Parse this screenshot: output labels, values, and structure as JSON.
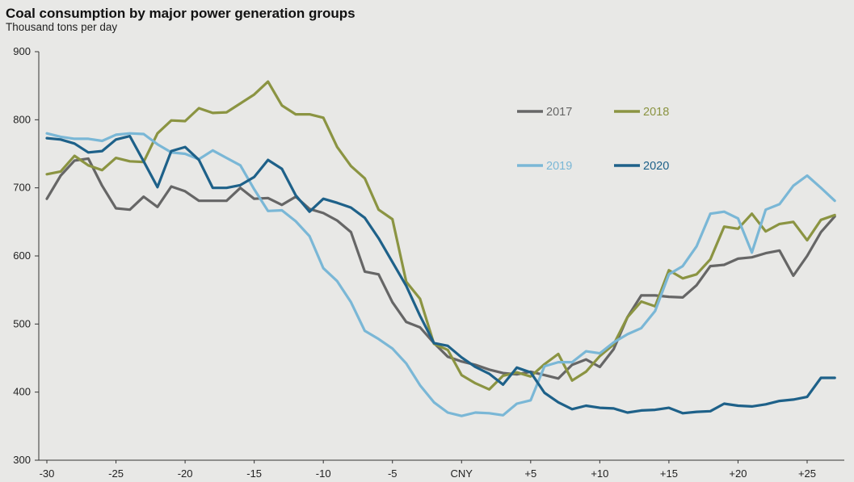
{
  "chart_data": {
    "type": "line",
    "title": "Coal consumption by major power generation groups",
    "subtitle": "Thousand tons per day",
    "ylim": [
      300,
      900
    ],
    "yticks": [
      300,
      400,
      500,
      600,
      700,
      800,
      900
    ],
    "xlim": [
      -30,
      28
    ],
    "xticks": [
      {
        "x": -30,
        "label": "-30"
      },
      {
        "x": -25,
        "label": "-25"
      },
      {
        "x": -20,
        "label": "-20"
      },
      {
        "x": -15,
        "label": "-15"
      },
      {
        "x": -10,
        "label": "-10"
      },
      {
        "x": -5,
        "label": "-5"
      },
      {
        "x": 0,
        "label": "CNY"
      },
      {
        "x": 5,
        "label": "+5"
      },
      {
        "x": 10,
        "label": "+10"
      },
      {
        "x": 15,
        "label": "+15"
      },
      {
        "x": 20,
        "label": "+20"
      },
      {
        "x": 25,
        "label": "+25"
      }
    ],
    "x_start": -30,
    "series": [
      {
        "name": "2017",
        "color": "#666666",
        "values": [
          684,
          718,
          740,
          743,
          703,
          670,
          668,
          687,
          672,
          702,
          695,
          681,
          681,
          681,
          700,
          684,
          685,
          675,
          687,
          669,
          663,
          652,
          635,
          577,
          573,
          532,
          503,
          495,
          472,
          452,
          445,
          440,
          433,
          428,
          426,
          430,
          425,
          420,
          440,
          448,
          437,
          463,
          510,
          542,
          542,
          540,
          539,
          557,
          585,
          587,
          596,
          598,
          604,
          608,
          571,
          600,
          635,
          658
        ]
      },
      {
        "name": "2018",
        "color": "#8b9442",
        "values": [
          720,
          724,
          747,
          733,
          726,
          744,
          739,
          738,
          780,
          799,
          798,
          817,
          810,
          811,
          824,
          837,
          856,
          821,
          808,
          808,
          803,
          760,
          732,
          714,
          668,
          654,
          562,
          537,
          471,
          462,
          425,
          413,
          404,
          424,
          429,
          423,
          441,
          456,
          417,
          430,
          453,
          470,
          510,
          533,
          526,
          579,
          567,
          573,
          595,
          643,
          640,
          662,
          636,
          647,
          650,
          623,
          653,
          660
        ]
      },
      {
        "name": "2019",
        "color": "#7ab7d6",
        "values": [
          780,
          775,
          772,
          772,
          769,
          778,
          780,
          779,
          764,
          752,
          750,
          742,
          755,
          744,
          733,
          698,
          666,
          667,
          651,
          629,
          582,
          563,
          532,
          490,
          478,
          464,
          442,
          410,
          385,
          370,
          365,
          370,
          369,
          366,
          383,
          388,
          438,
          444,
          444,
          460,
          457,
          473,
          485,
          494,
          519,
          573,
          585,
          614,
          662,
          665,
          655,
          605,
          668,
          676,
          703,
          718,
          700,
          681
        ]
      },
      {
        "name": "2020",
        "color": "#1e6189",
        "values": [
          773,
          771,
          765,
          752,
          754,
          771,
          776,
          739,
          701,
          754,
          760,
          741,
          700,
          700,
          704,
          716,
          741,
          728,
          689,
          665,
          684,
          678,
          671,
          656,
          626,
          591,
          556,
          512,
          472,
          468,
          451,
          437,
          427,
          411,
          436,
          429,
          399,
          385,
          375,
          380,
          377,
          376,
          370,
          373,
          374,
          377,
          369,
          371,
          372,
          383,
          380,
          379,
          382,
          387,
          389,
          393,
          421,
          421
        ]
      }
    ],
    "legend": {
      "entries": [
        "2017",
        "2018",
        "2019",
        "2020"
      ],
      "placement": "upper-right"
    },
    "grid": false
  }
}
